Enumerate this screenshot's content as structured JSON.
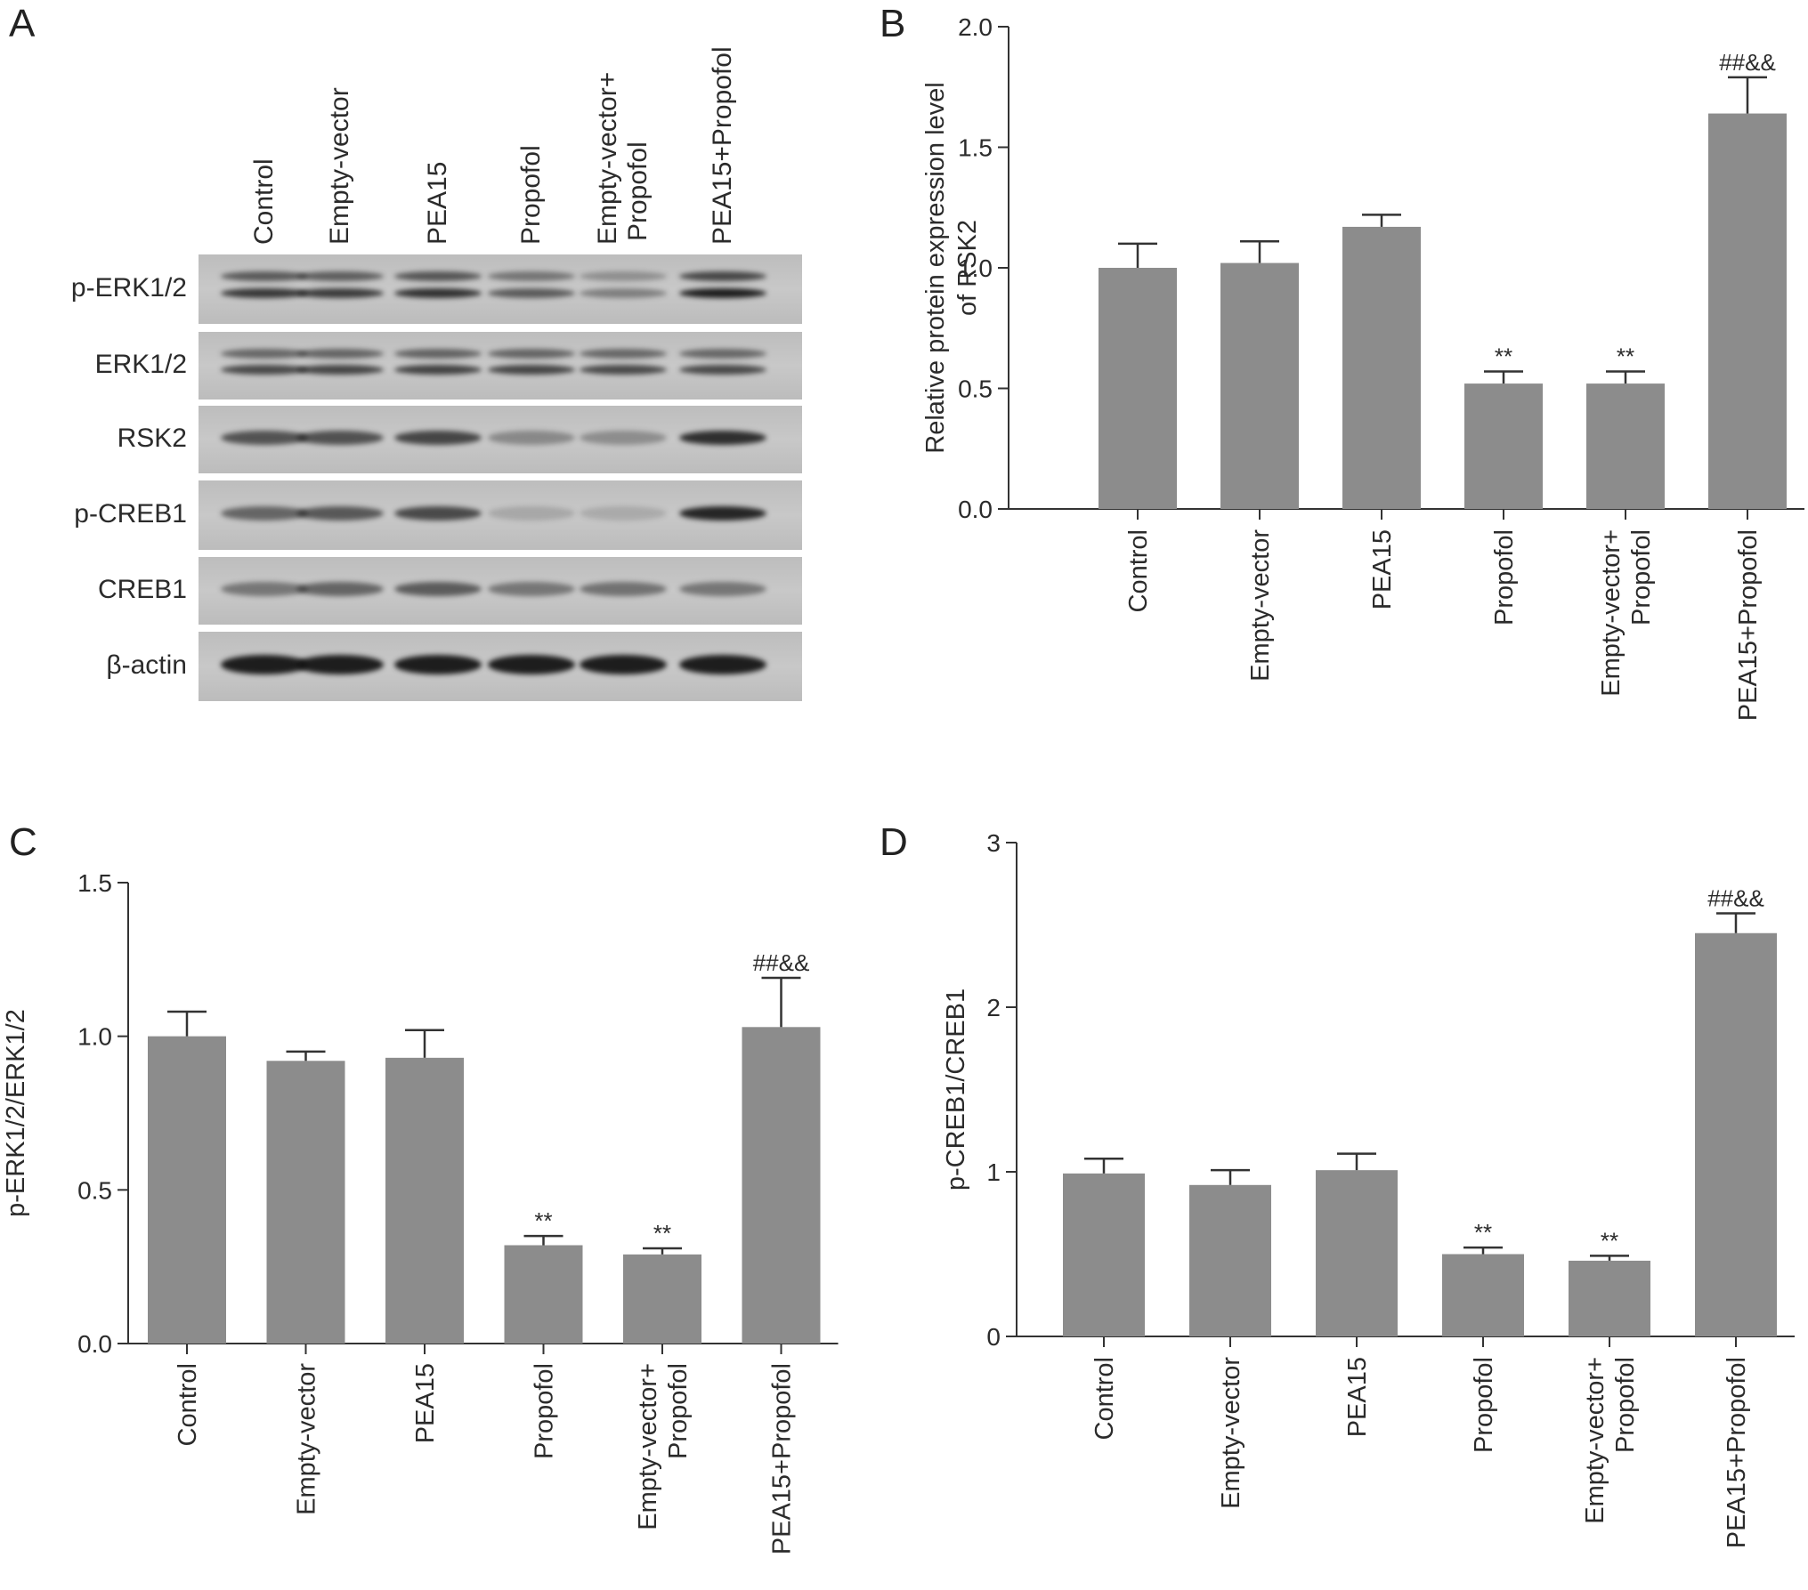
{
  "panels": {
    "A": "A",
    "B": "B",
    "C": "C",
    "D": "D"
  },
  "blot": {
    "lanes": [
      {
        "line1": "Control",
        "line2": ""
      },
      {
        "line1": "Empty-vector",
        "line2": ""
      },
      {
        "line1": "PEA15",
        "line2": ""
      },
      {
        "line1": "Propofol",
        "line2": ""
      },
      {
        "line1": "Empty-vector+",
        "line2": "Propofol"
      },
      {
        "line1": "PEA15+Propofol",
        "line2": ""
      }
    ],
    "rows": [
      {
        "label": "p-ERK1/2",
        "intensity": [
          0.8,
          0.78,
          0.84,
          0.6,
          0.4,
          0.95
        ],
        "double": true
      },
      {
        "label": "ERK1/2",
        "intensity": [
          0.7,
          0.72,
          0.74,
          0.72,
          0.7,
          0.7
        ],
        "double": true
      },
      {
        "label": "RSK2",
        "intensity": [
          0.65,
          0.66,
          0.72,
          0.35,
          0.32,
          0.85
        ],
        "double": false
      },
      {
        "label": "p-CREB1",
        "intensity": [
          0.55,
          0.62,
          0.7,
          0.18,
          0.16,
          0.9
        ],
        "double": false
      },
      {
        "label": "CREB1",
        "intensity": [
          0.45,
          0.55,
          0.6,
          0.45,
          0.48,
          0.45
        ],
        "double": false
      },
      {
        "label": "β-actin",
        "intensity": [
          0.95,
          0.95,
          0.95,
          0.95,
          0.95,
          0.95
        ],
        "double": false
      }
    ]
  },
  "chart_data": [
    {
      "panel": "B",
      "type": "bar",
      "ylabel": [
        "Relative protein expression level",
        "of RSK2"
      ],
      "ylim": [
        0,
        2.0
      ],
      "yticks": [
        "0.0",
        "0.5",
        "1.0",
        "1.5",
        "2.0"
      ],
      "categories": [
        "Control",
        "Empty-vector",
        "PEA15",
        "Propofol",
        "Empty-vector+\nPropofol",
        "PEA15+Propofol"
      ],
      "values": [
        1.0,
        1.02,
        1.17,
        0.52,
        0.52,
        1.64
      ],
      "errors": [
        0.1,
        0.09,
        0.05,
        0.05,
        0.05,
        0.15
      ],
      "annotations": [
        "",
        "",
        "",
        "**",
        "**",
        "##&&"
      ]
    },
    {
      "panel": "C",
      "type": "bar",
      "ylabel": [
        "p-ERK1/2/ERK1/2"
      ],
      "ylim": [
        0,
        1.5
      ],
      "yticks": [
        "0.0",
        "0.5",
        "1.0",
        "1.5"
      ],
      "categories": [
        "Control",
        "Empty-vector",
        "PEA15",
        "Propofol",
        "Empty-vector+\nPropofol",
        "PEA15+Propofol"
      ],
      "values": [
        1.0,
        0.92,
        0.93,
        0.32,
        0.29,
        1.03
      ],
      "errors": [
        0.08,
        0.03,
        0.09,
        0.03,
        0.02,
        0.16
      ],
      "annotations": [
        "",
        "",
        "",
        "**",
        "**",
        "##&&"
      ]
    },
    {
      "panel": "D",
      "type": "bar",
      "ylabel": [
        "p-CREB1/CREB1"
      ],
      "ylim": [
        0,
        3
      ],
      "yticks": [
        "0",
        "1",
        "2",
        "3"
      ],
      "categories": [
        "Control",
        "Empty-vector",
        "PEA15",
        "Propofol",
        "Empty-vector+\nPropofol",
        "PEA15+Propofol"
      ],
      "values": [
        0.99,
        0.92,
        1.01,
        0.5,
        0.46,
        2.45
      ],
      "errors": [
        0.09,
        0.09,
        0.1,
        0.04,
        0.03,
        0.12
      ],
      "annotations": [
        "",
        "",
        "",
        "**",
        "**",
        "##&&"
      ]
    }
  ]
}
